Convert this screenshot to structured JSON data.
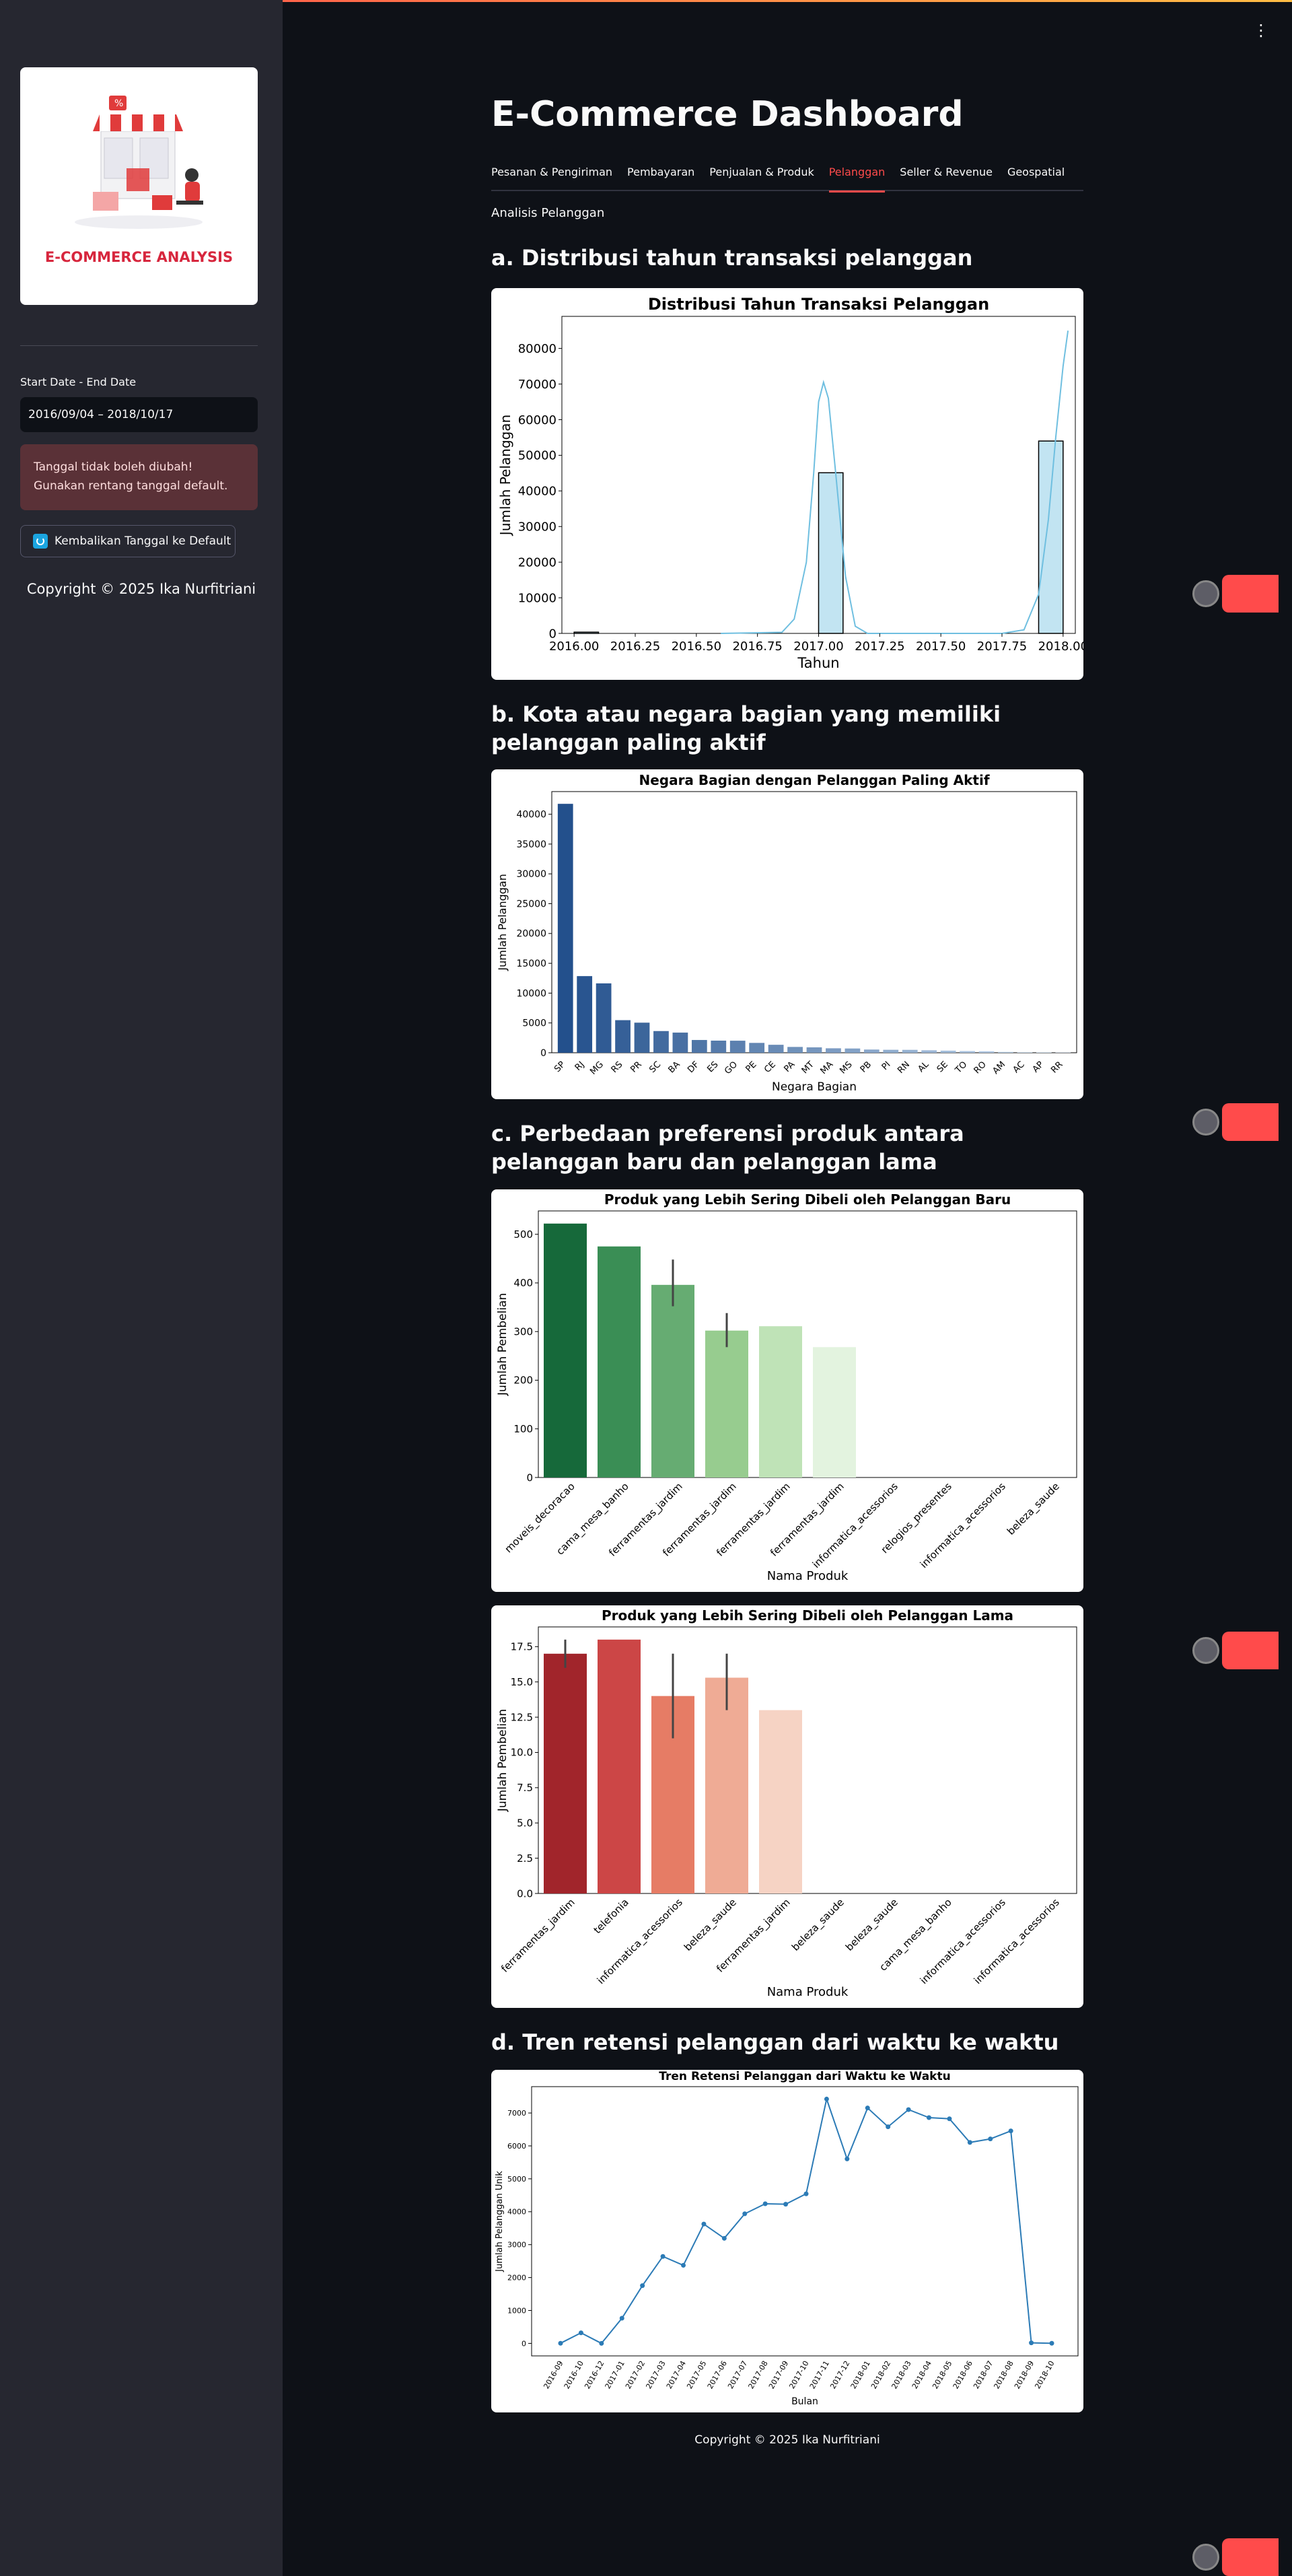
{
  "sidebar": {
    "logo_text": "E-COMMERCE ANALYSIS",
    "date_label": "Start Date - End Date",
    "date_value": "2016/09/04 – 2018/10/17",
    "warning": "Tanggal tidak boleh diubah! Gunakan rentang tanggal default.",
    "reset_label": "Kembalikan Tanggal ke Default",
    "copyright": "Copyright © 2025 Ika Nurfitriani"
  },
  "main": {
    "title": "E-Commerce Dashboard",
    "tabs": [
      {
        "label": "Pesanan & Pengiriman",
        "active": false
      },
      {
        "label": "Pembayaran",
        "active": false
      },
      {
        "label": "Penjualan & Produk",
        "active": false
      },
      {
        "label": "Pelanggan",
        "active": true
      },
      {
        "label": "Seller & Revenue",
        "active": false
      },
      {
        "label": "Geospatial",
        "active": false
      }
    ],
    "subheader": "Analisis Pelanggan",
    "sections": {
      "a": "a. Distribusi tahun transaksi pelanggan",
      "b": "b. Kota atau negara bagian yang memiliki pelanggan paling aktif",
      "c": "c. Perbedaan preferensi produk antara pelanggan baru dan pelanggan lama",
      "d": "d. Tren retensi pelanggan dari waktu ke waktu"
    },
    "footer": "Copyright © 2025 Ika Nurfitriani"
  },
  "colors": {
    "accent": "#ff4b4b",
    "bg": "#0e1117",
    "sidebar": "#262730"
  },
  "chart_data": [
    {
      "id": "year",
      "type": "bar",
      "title": "Distribusi Tahun Transaksi Pelanggan",
      "xlabel": "Tahun",
      "ylabel": "Jumlah Pelanggan",
      "xticks": [
        "2016.00",
        "2016.25",
        "2016.50",
        "2016.75",
        "2017.00",
        "2017.25",
        "2017.50",
        "2017.75",
        "2018.00"
      ],
      "yticks": [
        "0",
        "10000",
        "20000",
        "30000",
        "40000",
        "50000",
        "60000",
        "70000",
        "80000"
      ],
      "xlim": [
        2015.95,
        2018.05
      ],
      "ylim": [
        0,
        89000
      ],
      "bins": [
        {
          "x0": 2016.0,
          "x1": 2016.1,
          "value": 350
        },
        {
          "x0": 2017.0,
          "x1": 2017.1,
          "value": 45100
        },
        {
          "x0": 2017.9,
          "x1": 2018.0,
          "value": 54000
        }
      ],
      "kde": [
        [
          2016.6,
          0
        ],
        [
          2016.85,
          300
        ],
        [
          2016.9,
          4000
        ],
        [
          2016.95,
          20000
        ],
        [
          2016.98,
          45000
        ],
        [
          2017.0,
          65000
        ],
        [
          2017.02,
          70500
        ],
        [
          2017.04,
          66000
        ],
        [
          2017.07,
          45000
        ],
        [
          2017.11,
          16000
        ],
        [
          2017.15,
          2000
        ],
        [
          2017.2,
          0
        ],
        [
          2017.75,
          0
        ],
        [
          2017.84,
          1000
        ],
        [
          2017.9,
          11000
        ],
        [
          2017.94,
          32000
        ],
        [
          2017.97,
          55000
        ],
        [
          2018.0,
          75000
        ],
        [
          2018.02,
          85000
        ]
      ]
    },
    {
      "id": "states",
      "type": "bar",
      "title": "Negara Bagian dengan Pelanggan Paling Aktif",
      "xlabel": "Negara Bagian",
      "ylabel": "Jumlah Pelanggan",
      "categories": [
        "SP",
        "RJ",
        "MG",
        "RS",
        "PR",
        "SC",
        "BA",
        "DF",
        "ES",
        "GO",
        "PE",
        "CE",
        "PA",
        "MT",
        "MA",
        "MS",
        "PB",
        "PI",
        "RN",
        "AL",
        "SE",
        "TO",
        "RO",
        "AM",
        "AC",
        "AP",
        "RR"
      ],
      "values": [
        41746,
        12852,
        11635,
        5466,
        5045,
        3637,
        3380,
        2140,
        2033,
        2020,
        1652,
        1336,
        975,
        907,
        747,
        715,
        536,
        495,
        485,
        413,
        350,
        280,
        253,
        148,
        81,
        68,
        46
      ],
      "yticks": [
        "0",
        "5000",
        "10000",
        "15000",
        "20000",
        "25000",
        "30000",
        "35000",
        "40000"
      ],
      "ylim": [
        0,
        43800
      ]
    },
    {
      "id": "new",
      "type": "bar",
      "title": "Produk yang Lebih Sering Dibeli oleh Pelanggan Baru",
      "xlabel": "Nama Produk",
      "ylabel": "Jumlah Pembelian",
      "categories": [
        "moveis_decoracao",
        "cama_mesa_banho",
        "ferramentas_jardim",
        "ferramentas_jardim",
        "ferramentas_jardim",
        "ferramentas_jardim",
        "informatica_acessorios",
        "relogios_presentes",
        "informatica_acessorios",
        "beleza_saude"
      ],
      "values": [
        522,
        475,
        396,
        302,
        311,
        268,
        0,
        0,
        0,
        0
      ],
      "errors": [
        [
          0,
          0
        ],
        [
          0,
          0
        ],
        [
          352,
          448
        ],
        [
          268,
          338
        ],
        [
          0,
          0
        ],
        [
          0,
          0
        ],
        [
          0,
          0
        ],
        [
          0,
          0
        ],
        [
          0,
          0
        ],
        [
          0,
          0
        ]
      ],
      "colors": [
        "#16693a",
        "#3a8e55",
        "#66ac72",
        "#97cc8f",
        "#bfe3b7",
        "#e3f3df",
        "#f0f9ec",
        "#f7fcf5",
        "#f7fcf5",
        "#f7fcf5"
      ],
      "yticks": [
        "0",
        "100",
        "200",
        "300",
        "400",
        "500"
      ],
      "ylim": [
        0,
        548
      ]
    },
    {
      "id": "old",
      "type": "bar",
      "title": "Produk yang Lebih Sering Dibeli oleh Pelanggan Lama",
      "xlabel": "Nama Produk",
      "ylabel": "Jumlah Pembelian",
      "categories": [
        "ferramentas_jardim",
        "telefonia",
        "informatica_acessorios",
        "beleza_saude",
        "ferramentas_jardim",
        "beleza_saude",
        "beleza_saude",
        "cama_mesa_banho",
        "informatica_acessorios",
        "informatica_acessorios"
      ],
      "values": [
        17,
        18,
        14,
        15.3,
        13,
        0,
        0,
        0,
        0,
        0
      ],
      "errors": [
        [
          16,
          18
        ],
        [
          0,
          0
        ],
        [
          11,
          17
        ],
        [
          13,
          17
        ],
        [
          0,
          0
        ],
        [
          0,
          0
        ],
        [
          0,
          0
        ],
        [
          0,
          0
        ],
        [
          0,
          0
        ],
        [
          0,
          0
        ]
      ],
      "colors": [
        "#a1252b",
        "#cc4646",
        "#e67c65",
        "#efab95",
        "#f6d3c4",
        "#fdece4",
        "#fff5f0",
        "#fff5f0",
        "#fff5f0",
        "#fff5f0"
      ],
      "yticks": [
        "0.0",
        "2.5",
        "5.0",
        "7.5",
        "10.0",
        "12.5",
        "15.0",
        "17.5"
      ],
      "ylim": [
        0,
        18.9
      ]
    },
    {
      "id": "retention",
      "type": "line",
      "title": "Tren Retensi Pelanggan dari Waktu ke Waktu",
      "xlabel": "Bulan",
      "ylabel": "Jumlah Pelanggan Unik",
      "x": [
        "2016-09",
        "2016-10",
        "2016-12",
        "2017-01",
        "2017-02",
        "2017-03",
        "2017-04",
        "2017-05",
        "2017-06",
        "2017-07",
        "2017-08",
        "2017-09",
        "2017-10",
        "2017-11",
        "2017-12",
        "2018-01",
        "2018-02",
        "2018-03",
        "2018-04",
        "2018-05",
        "2018-06",
        "2018-07",
        "2018-08",
        "2018-09",
        "2018-10"
      ],
      "values": [
        4,
        321,
        1,
        765,
        1755,
        2642,
        2372,
        3625,
        3192,
        3937,
        4242,
        4229,
        4544,
        7423,
        5604,
        7152,
        6581,
        7102,
        6860,
        6824,
        6105,
        6213,
        6455,
        16,
        4
      ],
      "yticks": [
        "0",
        "1000",
        "2000",
        "3000",
        "4000",
        "5000",
        "6000",
        "7000"
      ],
      "ylim": [
        -380,
        7800
      ]
    }
  ]
}
